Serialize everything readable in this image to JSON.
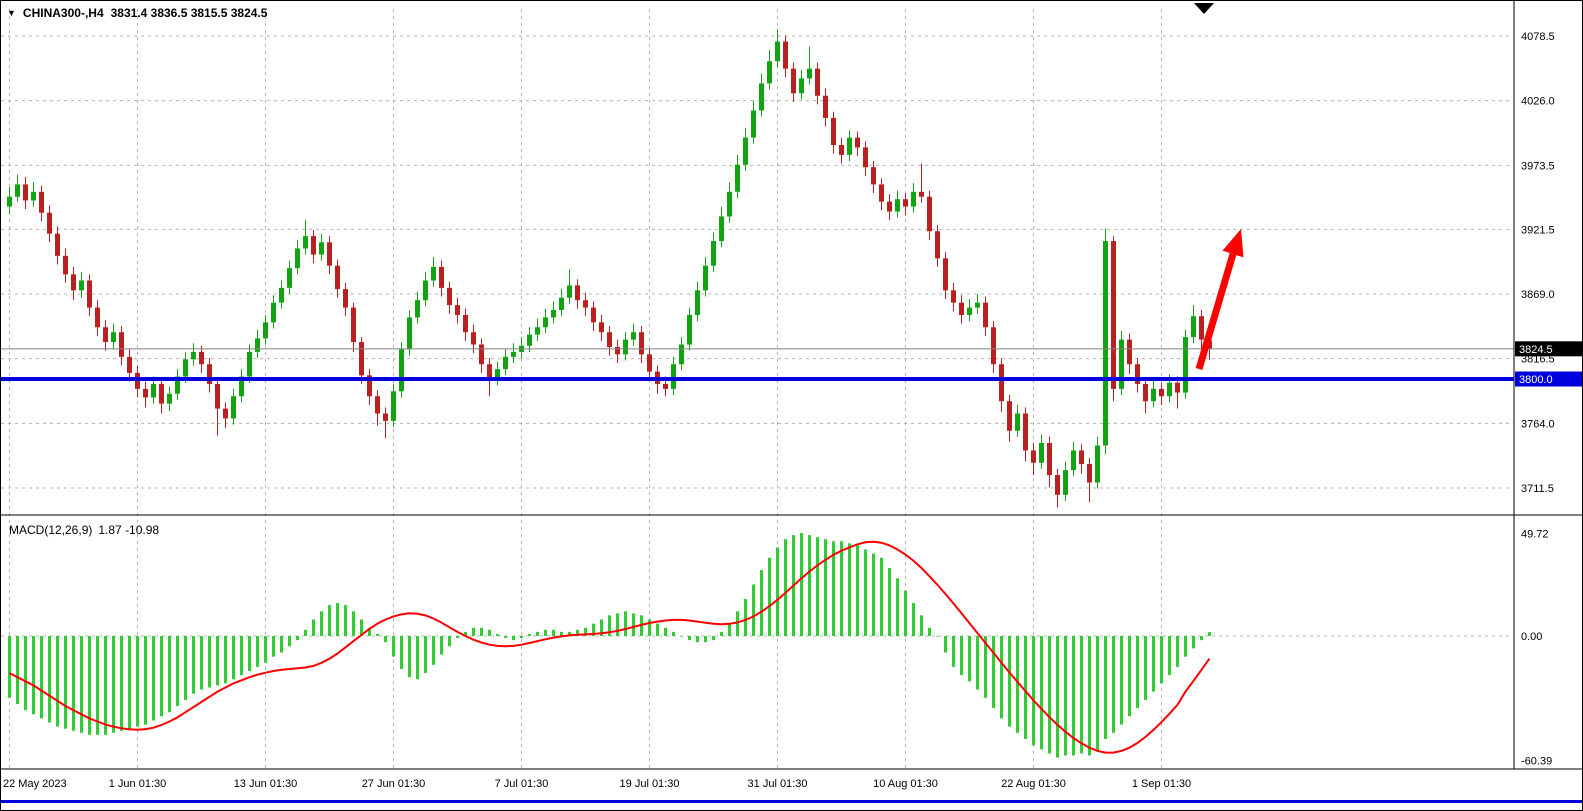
{
  "header": {
    "symbol_timeframe": "CHINA300-,H4",
    "ohlc": "3831.4 3836.5 3815.5 3824.5"
  },
  "price_axis": {
    "gridline_values": [
      4078.5,
      4026.0,
      3973.5,
      3921.5,
      3869.0,
      3816.5,
      3764.0,
      3711.5
    ],
    "current_price": 3824.5,
    "level_price": 3800.0
  },
  "time_axis": {
    "labels": [
      {
        "text": "22 May 2023",
        "bar": 0
      },
      {
        "text": "1 Jun 01:30",
        "bar": 16
      },
      {
        "text": "13 Jun 01:30",
        "bar": 32
      },
      {
        "text": "27 Jun 01:30",
        "bar": 48
      },
      {
        "text": "7 Jul 01:30",
        "bar": 64
      },
      {
        "text": "19 Jul 01:30",
        "bar": 80
      },
      {
        "text": "31 Jul 01:30",
        "bar": 96
      },
      {
        "text": "10 Aug 01:30",
        "bar": 112
      },
      {
        "text": "22 Aug 01:30",
        "bar": 128
      },
      {
        "text": "1 Sep 01:30",
        "bar": 144
      }
    ]
  },
  "macd_panel": {
    "indicator_label": "MACD(12,26,9)",
    "values_label": "1.87 -10.98",
    "axis_values": [
      49.72,
      0,
      -60.39
    ]
  },
  "chart_data": {
    "type": "candlestick",
    "symbol": "CHINA300-",
    "timeframe": "H4",
    "title": "CHINA300-,H4 3831.4 3836.5 3815.5 3824.5",
    "price_axis_range": [
      3693,
      4100
    ],
    "support_line": 3800.0,
    "current_price": 3824.5,
    "annotation": {
      "type": "arrow-up",
      "color": "#ff0000",
      "meaning": "bullish-projection"
    },
    "candles": [
      [
        3940,
        3956,
        3934,
        3948
      ],
      [
        3948,
        3966,
        3944,
        3958
      ],
      [
        3958,
        3964,
        3938,
        3945
      ],
      [
        3945,
        3960,
        3940,
        3952
      ],
      [
        3952,
        3957,
        3928,
        3935
      ],
      [
        3935,
        3941,
        3911,
        3918
      ],
      [
        3918,
        3924,
        3893,
        3900
      ],
      [
        3900,
        3906,
        3878,
        3885
      ],
      [
        3885,
        3891,
        3864,
        3872
      ],
      [
        3872,
        3887,
        3866,
        3880
      ],
      [
        3880,
        3885,
        3851,
        3858
      ],
      [
        3858,
        3864,
        3835,
        3842
      ],
      [
        3842,
        3848,
        3823,
        3830
      ],
      [
        3830,
        3845,
        3824,
        3838
      ],
      [
        3838,
        3843,
        3811,
        3818
      ],
      [
        3818,
        3824,
        3798,
        3805
      ],
      [
        3805,
        3811,
        3785,
        3792
      ],
      [
        3792,
        3798,
        3777,
        3785
      ],
      [
        3785,
        3802,
        3780,
        3796
      ],
      [
        3796,
        3801,
        3772,
        3780
      ],
      [
        3780,
        3794,
        3774,
        3788
      ],
      [
        3788,
        3808,
        3783,
        3802
      ],
      [
        3802,
        3822,
        3797,
        3816
      ],
      [
        3816,
        3829,
        3811,
        3822
      ],
      [
        3822,
        3827,
        3805,
        3812
      ],
      [
        3812,
        3817,
        3789,
        3796
      ],
      [
        3796,
        3800,
        3754,
        3776
      ],
      [
        3776,
        3781,
        3760,
        3768
      ],
      [
        3768,
        3792,
        3763,
        3786
      ],
      [
        3786,
        3808,
        3781,
        3802
      ],
      [
        3802,
        3828,
        3797,
        3822
      ],
      [
        3822,
        3840,
        3817,
        3833
      ],
      [
        3833,
        3852,
        3828,
        3846
      ],
      [
        3846,
        3868,
        3841,
        3862
      ],
      [
        3862,
        3880,
        3857,
        3874
      ],
      [
        3874,
        3896,
        3869,
        3890
      ],
      [
        3890,
        3913,
        3885,
        3906
      ],
      [
        3906,
        3929,
        3901,
        3916
      ],
      [
        3916,
        3921,
        3894,
        3901
      ],
      [
        3901,
        3918,
        3896,
        3911
      ],
      [
        3911,
        3916,
        3885,
        3892
      ],
      [
        3892,
        3897,
        3866,
        3873
      ],
      [
        3873,
        3878,
        3851,
        3858
      ],
      [
        3858,
        3862,
        3822,
        3830
      ],
      [
        3830,
        3834,
        3796,
        3803
      ],
      [
        3803,
        3808,
        3779,
        3786
      ],
      [
        3786,
        3791,
        3762,
        3772
      ],
      [
        3772,
        3777,
        3752,
        3766
      ],
      [
        3766,
        3796,
        3761,
        3790
      ],
      [
        3790,
        3830,
        3785,
        3824
      ],
      [
        3824,
        3856,
        3819,
        3850
      ],
      [
        3850,
        3871,
        3845,
        3864
      ],
      [
        3864,
        3887,
        3859,
        3880
      ],
      [
        3880,
        3899,
        3875,
        3891
      ],
      [
        3891,
        3896,
        3867,
        3874
      ],
      [
        3874,
        3879,
        3853,
        3860
      ],
      [
        3860,
        3866,
        3845,
        3852
      ],
      [
        3852,
        3857,
        3831,
        3838
      ],
      [
        3838,
        3844,
        3821,
        3828
      ],
      [
        3828,
        3833,
        3805,
        3812
      ],
      [
        3812,
        3817,
        3786,
        3800
      ],
      [
        3800,
        3814,
        3795,
        3808
      ],
      [
        3808,
        3824,
        3803,
        3818
      ],
      [
        3818,
        3829,
        3813,
        3822
      ],
      [
        3822,
        3834,
        3817,
        3827
      ],
      [
        3827,
        3842,
        3822,
        3836
      ],
      [
        3836,
        3849,
        3831,
        3842
      ],
      [
        3842,
        3857,
        3837,
        3850
      ],
      [
        3850,
        3863,
        3845,
        3856
      ],
      [
        3856,
        3873,
        3851,
        3866
      ],
      [
        3866,
        3889,
        3861,
        3876
      ],
      [
        3876,
        3881,
        3857,
        3864
      ],
      [
        3864,
        3870,
        3851,
        3858
      ],
      [
        3858,
        3863,
        3839,
        3846
      ],
      [
        3846,
        3852,
        3831,
        3838
      ],
      [
        3838,
        3843,
        3819,
        3826
      ],
      [
        3826,
        3832,
        3813,
        3820
      ],
      [
        3820,
        3838,
        3815,
        3832
      ],
      [
        3832,
        3845,
        3827,
        3838
      ],
      [
        3838,
        3843,
        3813,
        3820
      ],
      [
        3820,
        3825,
        3799,
        3806
      ],
      [
        3806,
        3811,
        3788,
        3796
      ],
      [
        3796,
        3802,
        3786,
        3792
      ],
      [
        3792,
        3818,
        3787,
        3812
      ],
      [
        3812,
        3834,
        3807,
        3828
      ],
      [
        3828,
        3858,
        3823,
        3852
      ],
      [
        3852,
        3879,
        3847,
        3872
      ],
      [
        3872,
        3899,
        3867,
        3892
      ],
      [
        3892,
        3919,
        3887,
        3912
      ],
      [
        3912,
        3940,
        3907,
        3932
      ],
      [
        3932,
        3960,
        3927,
        3952
      ],
      [
        3952,
        3982,
        3947,
        3974
      ],
      [
        3974,
        4004,
        3969,
        3996
      ],
      [
        3996,
        4026,
        3991,
        4018
      ],
      [
        4018,
        4048,
        4013,
        4040
      ],
      [
        4040,
        4067,
        4035,
        4058
      ],
      [
        4058,
        4084,
        4053,
        4074
      ],
      [
        4074,
        4079,
        4045,
        4052
      ],
      [
        4052,
        4057,
        4025,
        4032
      ],
      [
        4032,
        4051,
        4027,
        4044
      ],
      [
        4044,
        4070,
        4039,
        4052
      ],
      [
        4052,
        4057,
        4023,
        4030
      ],
      [
        4030,
        4036,
        4005,
        4012
      ],
      [
        4012,
        4017,
        3983,
        3990
      ],
      [
        3990,
        3996,
        3975,
        3982
      ],
      [
        3982,
        4002,
        3977,
        3996
      ],
      [
        3996,
        4001,
        3981,
        3988
      ],
      [
        3988,
        3993,
        3965,
        3972
      ],
      [
        3972,
        3977,
        3951,
        3958
      ],
      [
        3958,
        3963,
        3937,
        3944
      ],
      [
        3944,
        3950,
        3929,
        3936
      ],
      [
        3936,
        3953,
        3931,
        3946
      ],
      [
        3946,
        3951,
        3933,
        3940
      ],
      [
        3940,
        3959,
        3935,
        3952
      ],
      [
        3952,
        3975,
        3943,
        3948
      ],
      [
        3948,
        3953,
        3913,
        3920
      ],
      [
        3920,
        3925,
        3891,
        3898
      ],
      [
        3898,
        3903,
        3865,
        3872
      ],
      [
        3872,
        3878,
        3855,
        3862
      ],
      [
        3862,
        3868,
        3845,
        3852
      ],
      [
        3852,
        3865,
        3847,
        3858
      ],
      [
        3858,
        3869,
        3853,
        3862
      ],
      [
        3862,
        3867,
        3835,
        3842
      ],
      [
        3842,
        3847,
        3805,
        3812
      ],
      [
        3812,
        3817,
        3773,
        3782
      ],
      [
        3782,
        3787,
        3749,
        3758
      ],
      [
        3758,
        3779,
        3753,
        3772
      ],
      [
        3772,
        3777,
        3733,
        3742
      ],
      [
        3742,
        3748,
        3722,
        3732
      ],
      [
        3732,
        3755,
        3727,
        3748
      ],
      [
        3748,
        3753,
        3712,
        3722
      ],
      [
        3722,
        3727,
        3696,
        3706
      ],
      [
        3706,
        3733,
        3701,
        3726
      ],
      [
        3726,
        3749,
        3721,
        3742
      ],
      [
        3742,
        3747,
        3723,
        3731
      ],
      [
        3731,
        3736,
        3700,
        3716
      ],
      [
        3716,
        3753,
        3711,
        3746
      ],
      [
        3746,
        3922,
        3739,
        3912
      ],
      [
        3912,
        3916,
        3782,
        3792
      ],
      [
        3792,
        3839,
        3787,
        3832
      ],
      [
        3832,
        3837,
        3804,
        3812
      ],
      [
        3812,
        3817,
        3789,
        3796
      ],
      [
        3796,
        3801,
        3772,
        3782
      ],
      [
        3782,
        3799,
        3777,
        3792
      ],
      [
        3792,
        3797,
        3779,
        3786
      ],
      [
        3786,
        3804,
        3781,
        3797
      ],
      [
        3797,
        3802,
        3776,
        3789
      ],
      [
        3789,
        3840,
        3784,
        3834
      ],
      [
        3834,
        3860,
        3829,
        3851
      ],
      [
        3851,
        3856,
        3824,
        3832
      ],
      [
        3831.4,
        3836.5,
        3815.5,
        3824.5
      ]
    ],
    "macd": {
      "type": "bar+line",
      "last_main": 1.87,
      "last_signal": -10.98,
      "ylim": [
        -60.39,
        49.72
      ],
      "histogram": [
        -30,
        -33,
        -36,
        -38,
        -40,
        -42,
        -44,
        -45,
        -46,
        -47,
        -48,
        -48,
        -48,
        -47,
        -46,
        -45,
        -44,
        -43,
        -41,
        -39,
        -37,
        -34,
        -31,
        -28,
        -26,
        -25,
        -24,
        -23,
        -21,
        -19,
        -17,
        -15,
        -13,
        -10,
        -8,
        -5,
        -2,
        3,
        8,
        12,
        15,
        16,
        15,
        12,
        8,
        4,
        1,
        -3,
        -10,
        -16,
        -20,
        -21,
        -18,
        -14,
        -9,
        -5,
        -1,
        2,
        4,
        4,
        3,
        1,
        -1,
        -2,
        -1,
        1,
        2,
        3,
        3,
        2,
        2,
        3,
        4,
        6,
        8,
        10,
        11,
        12,
        11,
        10,
        8,
        6,
        4,
        2,
        0,
        -2,
        -3,
        -3,
        -2,
        2,
        6,
        12,
        18,
        25,
        32,
        38,
        43,
        47,
        49,
        50,
        49,
        48,
        47,
        46,
        46,
        45,
        44,
        42,
        40,
        38,
        33,
        28,
        22,
        16,
        10,
        4,
        0,
        -8,
        -15,
        -19,
        -22,
        -26,
        -30,
        -35,
        -40,
        -44,
        -47,
        -50,
        -53,
        -55,
        -57,
        -59,
        -58,
        -58,
        -57,
        -58,
        -56,
        -50,
        -47,
        -43,
        -39,
        -35,
        -31,
        -27,
        -23,
        -19,
        -15,
        -10,
        -6,
        -2,
        1.87
      ],
      "signal": [
        -18,
        -20,
        -22,
        -24,
        -26.5,
        -29,
        -31.5,
        -34,
        -36,
        -38,
        -40,
        -41.5,
        -43,
        -44,
        -44.8,
        -45.3,
        -45.5,
        -45.2,
        -44.5,
        -43.2,
        -41.5,
        -39.5,
        -37,
        -34.5,
        -32,
        -29.5,
        -27,
        -25,
        -23,
        -21.5,
        -20,
        -18.8,
        -17.8,
        -17,
        -16.4,
        -16,
        -15.7,
        -15.3,
        -14.5,
        -13,
        -11,
        -8.5,
        -5.5,
        -2.5,
        0.5,
        3.5,
        6,
        8,
        9.5,
        10.5,
        11,
        10.8,
        10,
        8.5,
        6.5,
        4.2,
        2,
        0,
        -1.8,
        -3.2,
        -4.2,
        -4.8,
        -5,
        -4.8,
        -4.2,
        -3.4,
        -2.5,
        -1.6,
        -0.8,
        -0.2,
        0.3,
        0.6,
        0.8,
        1,
        1.3,
        1.8,
        2.5,
        3.4,
        4.4,
        5.4,
        6.3,
        7,
        7.5,
        7.8,
        7.8,
        7.5,
        7,
        6.4,
        5.9,
        5.7,
        5.9,
        6.6,
        7.8,
        9.5,
        11.8,
        14.5,
        17.6,
        21,
        24.5,
        28,
        31.3,
        34.3,
        37,
        39.4,
        41.4,
        43,
        44.5,
        45.5,
        45.8,
        45.3,
        44,
        42,
        39.5,
        36.5,
        33,
        29,
        24.8,
        20.4,
        15.8,
        11,
        6.2,
        1.4,
        -3.4,
        -8.2,
        -13,
        -17.7,
        -22.3,
        -26.8,
        -31.2,
        -35.4,
        -39.4,
        -43.1,
        -46.5,
        -49.5,
        -52.1,
        -54.2,
        -55.8,
        -56.6,
        -56.6,
        -55.8,
        -54.2,
        -51.9,
        -49,
        -45.6,
        -41.8,
        -37.7,
        -33.4,
        -27,
        -21.8,
        -16.4,
        -10.98
      ]
    }
  },
  "colors": {
    "background": "#ffffff",
    "grid": "#b4b4b4",
    "candle_up": "#12a312",
    "candle_down": "#bb2020",
    "macd_histogram": "#33cc33",
    "macd_signal": "#ff0000",
    "support_line": "#0000dd",
    "current_price_line": "#808080",
    "arrow": "#ff0000",
    "badge_current_bg": "#000000",
    "badge_level_bg": "#0000dd",
    "text": "#000000"
  }
}
